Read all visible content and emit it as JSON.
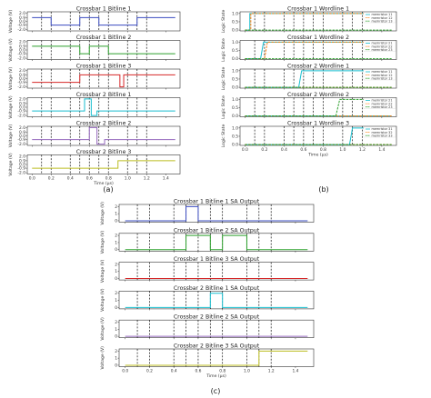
{
  "captions": {
    "a": "(a)",
    "b": "(b)",
    "c": "(c)"
  },
  "colors": {
    "blue": "#3b4cc0",
    "green": "#2ca02c",
    "red": "#d62728",
    "teal": "#17becf",
    "purple": "#9467bd",
    "olive": "#bcbd22",
    "orange": "#ff7f0e"
  },
  "panels": {
    "a": {
      "xlabel": "Time (µs)",
      "ylabel": "Voltage (V)",
      "x_ticks": [
        "0.0",
        "0.2",
        "0.4",
        "0.6",
        "0.8",
        "1.0",
        "1.2",
        "1.4"
      ],
      "y_ticks": [
        "2.0",
        "0.9",
        "0.0",
        "-0.9",
        "-2.0"
      ]
    },
    "b": {
      "xlabel": "Time (µs)",
      "ylabel": "Logic State",
      "x_ticks": [
        "0.0",
        "0.2",
        "0.4",
        "0.6",
        "0.8",
        "1.0",
        "1.2",
        "1.4"
      ],
      "y_ticks": [
        "1.0",
        "0.5",
        "0.0"
      ]
    },
    "c": {
      "xlabel": "Time (µs)",
      "ylabel": "Voltage (V)",
      "x_ticks": [
        "0.0",
        "0.2",
        "0.4",
        "0.6",
        "0.8",
        "1.0",
        "1.2",
        "1.4"
      ],
      "y_ticks": [
        "2",
        "1",
        "0"
      ]
    }
  },
  "chart_data": [
    {
      "panel": "a",
      "type": "line",
      "title": "Crossbar 1 Bitline 1",
      "xlabel": "",
      "ylabel": "Voltage (V)",
      "xlim": [
        -0.05,
        1.55
      ],
      "ylim": [
        -2.3,
        2.3
      ],
      "dashed_x": [
        0.1,
        0.2,
        0.4,
        0.5,
        0.6,
        0.7,
        0.8,
        1.0,
        1.1,
        1.2
      ],
      "series": [
        {
          "color": "blue",
          "x": [
            0,
            0.2,
            0.2,
            0.5,
            0.5,
            0.7,
            0.7,
            1.1,
            1.1,
            1.5
          ],
          "y": [
            0.9,
            0.9,
            -0.9,
            -0.9,
            0.9,
            0.9,
            -0.9,
            -0.9,
            0.9,
            0.9
          ]
        }
      ]
    },
    {
      "panel": "a",
      "type": "line",
      "title": "Crossbar 1 Bitline 2",
      "xlabel": "",
      "ylabel": "Voltage (V)",
      "xlim": [
        -0.05,
        1.55
      ],
      "ylim": [
        -2.3,
        2.3
      ],
      "dashed_x": [
        0.1,
        0.2,
        0.4,
        0.5,
        0.6,
        0.7,
        0.8,
        1.0,
        1.1,
        1.2
      ],
      "series": [
        {
          "color": "green",
          "x": [
            0,
            0.5,
            0.5,
            0.6,
            0.6,
            0.8,
            0.8,
            1.5
          ],
          "y": [
            0.9,
            0.9,
            -0.9,
            -0.9,
            0.9,
            0.9,
            -0.9,
            -0.9
          ]
        }
      ]
    },
    {
      "panel": "a",
      "type": "line",
      "title": "Crossbar 1 Bitline 3",
      "xlabel": "",
      "ylabel": "Voltage (V)",
      "xlim": [
        -0.05,
        1.55
      ],
      "ylim": [
        -2.3,
        2.3
      ],
      "dashed_x": [
        0.1,
        0.2,
        0.4,
        0.5,
        0.6,
        0.7,
        0.8,
        1.0,
        1.1,
        1.2
      ],
      "series": [
        {
          "color": "red",
          "x": [
            0,
            0.5,
            0.5,
            0.92,
            0.92,
            0.96,
            0.96,
            1.0,
            1.0,
            1.5
          ],
          "y": [
            -0.9,
            -0.9,
            0.9,
            0.9,
            -2.0,
            -2.0,
            0.9,
            0.9,
            0.9,
            0.9
          ]
        }
      ]
    },
    {
      "panel": "a",
      "type": "line",
      "title": "Crossbar 2 Bitline 1",
      "xlabel": "",
      "ylabel": "Voltage (V)",
      "xlim": [
        -0.05,
        1.55
      ],
      "ylim": [
        -2.3,
        2.3
      ],
      "dashed_x": [
        0.1,
        0.2,
        0.4,
        0.5,
        0.6,
        0.7,
        0.8,
        1.0,
        1.1,
        1.2
      ],
      "series": [
        {
          "color": "teal",
          "x": [
            0,
            0.55,
            0.55,
            0.62,
            0.62,
            0.68,
            0.68,
            1.5
          ],
          "y": [
            -0.9,
            -0.9,
            2.0,
            2.0,
            -2.0,
            -2.0,
            -0.9,
            -0.9
          ]
        }
      ]
    },
    {
      "panel": "a",
      "type": "line",
      "title": "Crossbar 2 Bitline 2",
      "xlabel": "",
      "ylabel": "Voltage (V)",
      "xlim": [
        -0.05,
        1.55
      ],
      "ylim": [
        -2.3,
        2.3
      ],
      "dashed_x": [
        0.1,
        0.2,
        0.4,
        0.5,
        0.6,
        0.7,
        0.8,
        1.0,
        1.1,
        1.2
      ],
      "series": [
        {
          "color": "purple",
          "x": [
            0,
            0.6,
            0.6,
            0.68,
            0.68,
            0.76,
            0.76,
            1.5
          ],
          "y": [
            -0.9,
            -0.9,
            2.0,
            2.0,
            -2.0,
            -2.0,
            -0.9,
            -0.9
          ]
        }
      ]
    },
    {
      "panel": "a",
      "type": "line",
      "title": "Crossbar 2 Bitline 3",
      "xlabel": "Time (µs)",
      "ylabel": "Voltage (V)",
      "xlim": [
        -0.05,
        1.55
      ],
      "ylim": [
        -2.3,
        2.3
      ],
      "dashed_x": [
        0.1,
        0.2,
        0.4,
        0.5,
        0.6,
        0.7,
        0.8,
        1.0,
        1.1,
        1.2
      ],
      "series": [
        {
          "color": "olive",
          "x": [
            0,
            0.9,
            0.9,
            1.0,
            1.0,
            1.5
          ],
          "y": [
            -0.9,
            -0.9,
            0.9,
            0.9,
            0.9,
            0.9
          ]
        }
      ]
    },
    {
      "panel": "b",
      "type": "line",
      "title": "Crossbar 1 Wordline 1",
      "xlabel": "",
      "ylabel": "Logic State",
      "xlim": [
        -0.05,
        1.55
      ],
      "ylim": [
        -0.05,
        1.1
      ],
      "dashed_x": [
        0.1,
        0.2,
        0.4,
        0.5,
        0.6,
        0.7,
        0.8,
        1.0,
        1.1,
        1.2
      ],
      "legend": [
        "memristor 11",
        "memristor 12",
        "memristor 13"
      ],
      "series": [
        {
          "name": "memristor 11",
          "color": "teal",
          "x": [
            0,
            0.05,
            0.05,
            1.5
          ],
          "y": [
            0,
            0,
            1,
            1
          ]
        },
        {
          "name": "memristor 12",
          "color": "orange",
          "x": [
            0,
            0.06,
            0.06,
            1.5
          ],
          "y": [
            0,
            0,
            1,
            1
          ]
        },
        {
          "name": "memristor 13",
          "color": "green",
          "x": [
            0,
            1.5
          ],
          "y": [
            0,
            0
          ]
        }
      ]
    },
    {
      "panel": "b",
      "type": "line",
      "title": "Crossbar 1 Wordline 2",
      "xlabel": "",
      "ylabel": "Logic State",
      "xlim": [
        -0.05,
        1.55
      ],
      "ylim": [
        -0.05,
        1.1
      ],
      "dashed_x": [
        0.1,
        0.2,
        0.4,
        0.5,
        0.6,
        0.7,
        0.8,
        1.0,
        1.1,
        1.2
      ],
      "legend": [
        "memristor 21",
        "memristor 22",
        "memristor 23"
      ],
      "series": [
        {
          "name": "memristor 21",
          "color": "teal",
          "x": [
            0,
            0.16,
            0.19,
            1.5
          ],
          "y": [
            0,
            0,
            1,
            1
          ]
        },
        {
          "name": "memristor 22",
          "color": "orange",
          "x": [
            0,
            0.2,
            0.23,
            1.5
          ],
          "y": [
            0,
            0,
            1,
            1
          ]
        },
        {
          "name": "memristor 23",
          "color": "green",
          "x": [
            0,
            1.5
          ],
          "y": [
            0,
            0
          ]
        }
      ]
    },
    {
      "panel": "b",
      "type": "line",
      "title": "Crossbar 2 Wordline 1",
      "xlabel": "",
      "ylabel": "Logic State",
      "xlim": [
        -0.05,
        1.55
      ],
      "ylim": [
        -0.05,
        1.1
      ],
      "dashed_x": [
        0.1,
        0.2,
        0.4,
        0.5,
        0.6,
        0.7,
        0.8,
        1.0,
        1.1,
        1.2
      ],
      "legend": [
        "memristor 11",
        "memristor 12",
        "memristor 13"
      ],
      "series": [
        {
          "name": "memristor 11",
          "color": "teal",
          "x": [
            0,
            0.55,
            0.58,
            1.5
          ],
          "y": [
            0,
            0,
            1,
            1
          ]
        },
        {
          "name": "memristor 12",
          "color": "orange",
          "x": [
            0,
            1.5
          ],
          "y": [
            0,
            0
          ]
        },
        {
          "name": "memristor 13",
          "color": "green",
          "x": [
            0,
            1.5
          ],
          "y": [
            0,
            0
          ]
        }
      ]
    },
    {
      "panel": "b",
      "type": "line",
      "title": "Crossbar 2 Wordline 2",
      "xlabel": "",
      "ylabel": "Logic State",
      "xlim": [
        -0.05,
        1.55
      ],
      "ylim": [
        -0.05,
        1.1
      ],
      "dashed_x": [
        0.1,
        0.2,
        0.4,
        0.5,
        0.6,
        0.7,
        0.8,
        1.0,
        1.1,
        1.2
      ],
      "legend": [
        "memristor 21",
        "memristor 22",
        "memristor 23"
      ],
      "series": [
        {
          "name": "memristor 21",
          "color": "teal",
          "x": [
            0,
            1.5
          ],
          "y": [
            0,
            0
          ]
        },
        {
          "name": "memristor 22",
          "color": "orange",
          "x": [
            0,
            1.5
          ],
          "y": [
            0,
            0
          ]
        },
        {
          "name": "memristor 23",
          "color": "green",
          "x": [
            0,
            0.93,
            0.97,
            1.5
          ],
          "y": [
            0,
            0,
            1,
            1
          ]
        }
      ]
    },
    {
      "panel": "b",
      "type": "line",
      "title": "Crossbar 1 Wordline 3",
      "xlabel": "Time (µs)",
      "ylabel": "Logic State",
      "xlim": [
        -0.05,
        1.55
      ],
      "ylim": [
        -0.05,
        1.1
      ],
      "dashed_x": [
        0.1,
        0.2,
        0.4,
        0.5,
        0.6,
        0.7,
        0.8,
        1.0,
        1.1,
        1.2
      ],
      "legend": [
        "memristor 31",
        "memristor 32",
        "memristor 33"
      ],
      "series": [
        {
          "name": "memristor 31",
          "color": "teal",
          "x": [
            0,
            1.07,
            1.1,
            1.5
          ],
          "y": [
            0,
            0,
            1,
            1
          ]
        },
        {
          "name": "memristor 32",
          "color": "orange",
          "x": [
            0,
            1.5
          ],
          "y": [
            0,
            0
          ]
        },
        {
          "name": "memristor 33",
          "color": "green",
          "x": [
            0,
            1.5
          ],
          "y": [
            0,
            0
          ]
        }
      ]
    },
    {
      "panel": "c",
      "type": "line",
      "title": "Crossbar 1 Bitline 1 SA Output",
      "xlabel": "",
      "ylabel": "Voltage (V)",
      "xlim": [
        -0.05,
        1.55
      ],
      "ylim": [
        -0.2,
        2.3
      ],
      "dashed_x": [
        0.1,
        0.2,
        0.4,
        0.5,
        0.6,
        0.7,
        0.8,
        1.0,
        1.1,
        1.2
      ],
      "series": [
        {
          "color": "blue",
          "x": [
            0,
            0.5,
            0.5,
            0.6,
            0.6,
            0.62,
            0.62,
            1.5
          ],
          "y": [
            0,
            0,
            2,
            2,
            0,
            0,
            0,
            0
          ]
        }
      ]
    },
    {
      "panel": "c",
      "type": "line",
      "title": "Crossbar 1 Bitline 2 SA Output",
      "xlabel": "",
      "ylabel": "Voltage (V)",
      "xlim": [
        -0.05,
        1.55
      ],
      "ylim": [
        -0.2,
        2.3
      ],
      "dashed_x": [
        0.1,
        0.2,
        0.4,
        0.5,
        0.6,
        0.7,
        0.8,
        1.0,
        1.1,
        1.2
      ],
      "series": [
        {
          "color": "green",
          "x": [
            0,
            0.5,
            0.5,
            0.7,
            0.7,
            0.8,
            0.8,
            1.0,
            1.0,
            1.5
          ],
          "y": [
            0,
            0,
            2,
            2,
            0,
            0,
            2,
            2,
            0,
            0
          ]
        }
      ]
    },
    {
      "panel": "c",
      "type": "line",
      "title": "Crossbar 1 Bitline 3 SA Output",
      "xlabel": "",
      "ylabel": "Voltage (V)",
      "xlim": [
        -0.05,
        1.55
      ],
      "ylim": [
        -0.2,
        2.3
      ],
      "dashed_x": [
        0.1,
        0.2,
        0.4,
        0.5,
        0.6,
        0.7,
        0.8,
        1.0,
        1.1,
        1.2
      ],
      "series": [
        {
          "color": "red",
          "x": [
            0,
            1.5
          ],
          "y": [
            0,
            0
          ]
        }
      ]
    },
    {
      "panel": "c",
      "type": "line",
      "title": "Crossbar 2 Bitline 1 SA Output",
      "xlabel": "",
      "ylabel": "Voltage (V)",
      "xlim": [
        -0.05,
        1.55
      ],
      "ylim": [
        -0.2,
        2.3
      ],
      "dashed_x": [
        0.1,
        0.2,
        0.4,
        0.5,
        0.6,
        0.7,
        0.8,
        1.0,
        1.1,
        1.2
      ],
      "series": [
        {
          "color": "teal",
          "x": [
            0,
            0.7,
            0.7,
            0.8,
            0.8,
            1.0,
            1.0,
            1.5
          ],
          "y": [
            0,
            0,
            2,
            2,
            0,
            0,
            0,
            0
          ]
        }
      ]
    },
    {
      "panel": "c",
      "type": "line",
      "title": "Crossbar 2 Bitline 2 SA Output",
      "xlabel": "",
      "ylabel": "Voltage (V)",
      "xlim": [
        -0.05,
        1.55
      ],
      "ylim": [
        -0.2,
        2.3
      ],
      "dashed_x": [
        0.1,
        0.2,
        0.4,
        0.5,
        0.6,
        0.7,
        0.8,
        1.0,
        1.1,
        1.2
      ],
      "series": [
        {
          "color": "purple",
          "x": [
            0,
            1.5
          ],
          "y": [
            0,
            0
          ]
        }
      ]
    },
    {
      "panel": "c",
      "type": "line",
      "title": "Crossbar 2 Bitline 3 SA Output",
      "xlabel": "Time (µs)",
      "ylabel": "Voltage (V)",
      "xlim": [
        -0.05,
        1.55
      ],
      "ylim": [
        -0.2,
        2.3
      ],
      "dashed_x": [
        0.1,
        0.2,
        0.4,
        0.5,
        0.6,
        0.7,
        0.8,
        1.0,
        1.1,
        1.2
      ],
      "series": [
        {
          "color": "olive",
          "x": [
            0,
            1.1,
            1.1,
            1.5
          ],
          "y": [
            0,
            0,
            2,
            2
          ]
        }
      ]
    }
  ]
}
